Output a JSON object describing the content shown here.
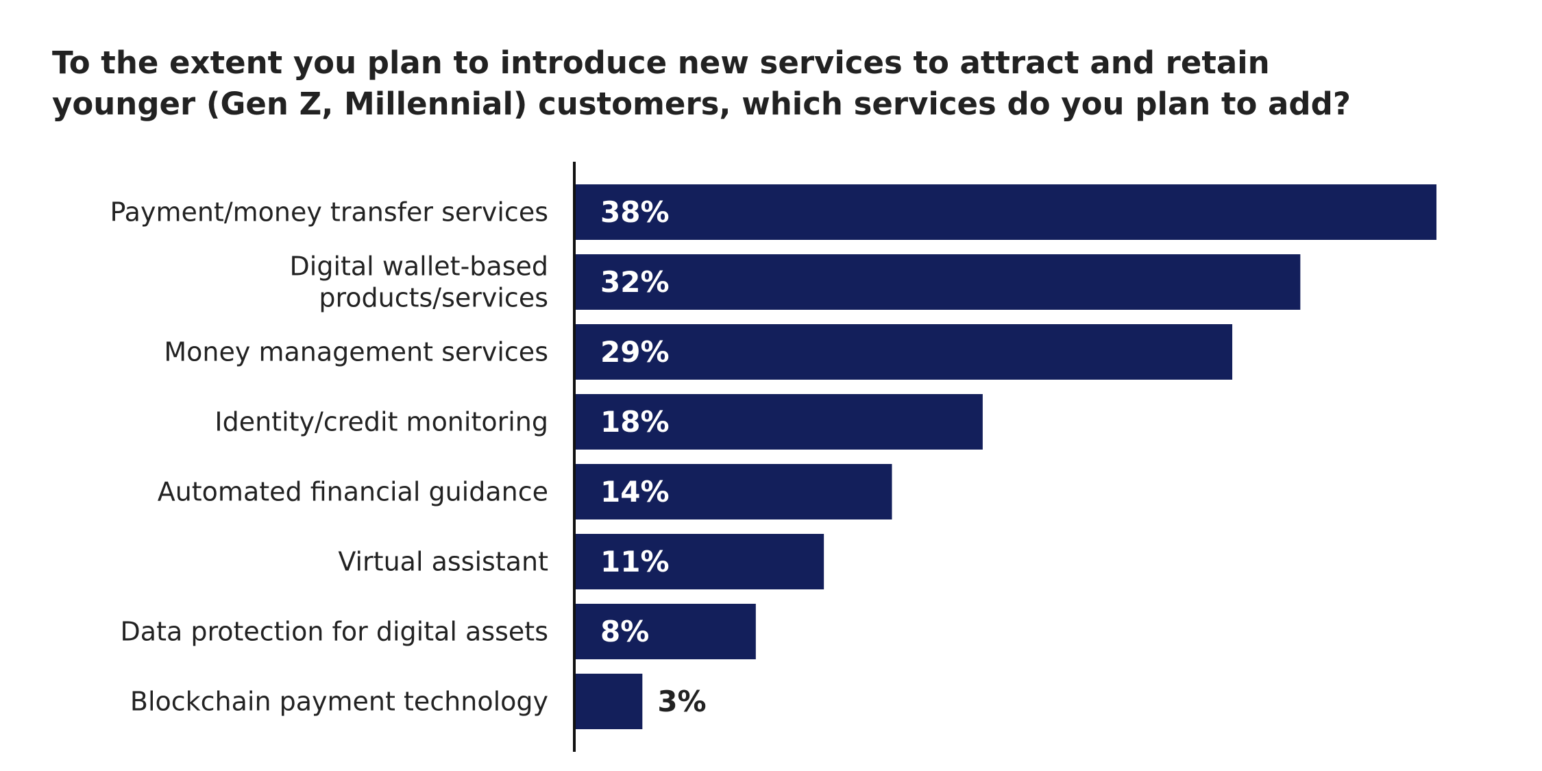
{
  "chart_data": {
    "type": "bar",
    "orientation": "horizontal",
    "title": "To the extent you plan to introduce new services to attract and retain younger (Gen Z, Millennial) customers, which services do you plan to add?",
    "categories": [
      [
        "Payment/money transfer services"
      ],
      [
        "Digital wallet-based",
        "products/services"
      ],
      [
        "Money management services"
      ],
      [
        "Identity/credit monitoring"
      ],
      [
        "Automated financial guidance"
      ],
      [
        "Virtual assistant"
      ],
      [
        "Data protection for digital assets"
      ],
      [
        "Blockchain payment technology"
      ]
    ],
    "values": [
      38,
      32,
      29,
      18,
      14,
      11,
      8,
      3
    ],
    "value_labels": [
      "38%",
      "32%",
      "29%",
      "18%",
      "14%",
      "11%",
      "8%",
      "3%"
    ],
    "unit": "%",
    "xlim": [
      0,
      40
    ],
    "grid": false,
    "bar_color": "#131f5b",
    "label_inside_color": "#ffffff",
    "label_outside_color": "#222222"
  }
}
